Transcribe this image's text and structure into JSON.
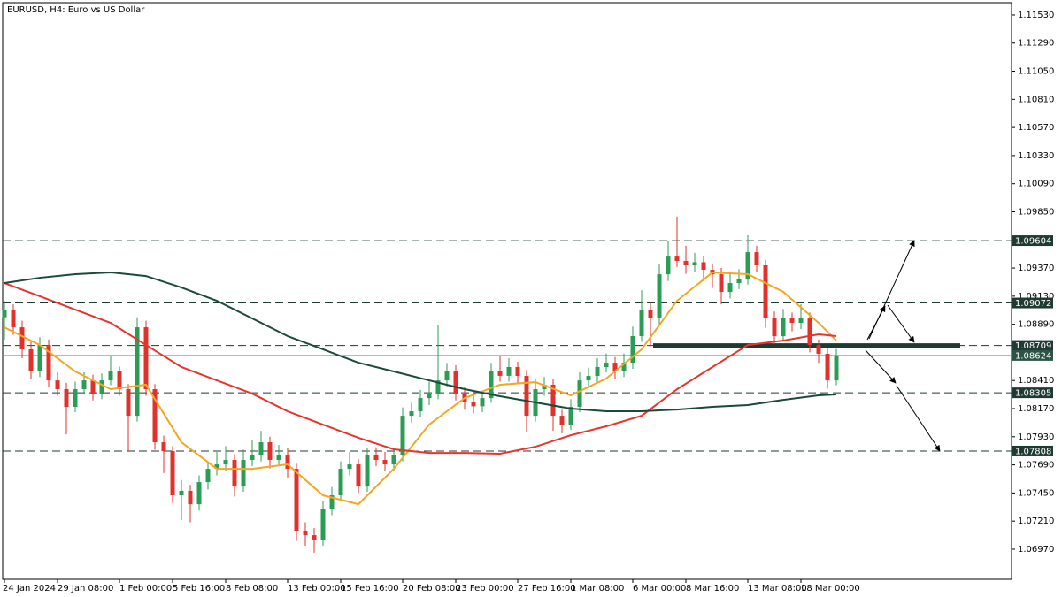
{
  "chart_data": {
    "type": "candlestick",
    "title": "EURUSD, H4:  Euro vs US Dollar",
    "ylim": [
      1.06713,
      1.11658
    ],
    "yticks": [
      {
        "value": 1.1153,
        "label": "1.11530"
      },
      {
        "value": 1.1129,
        "label": "1.11290"
      },
      {
        "value": 1.1105,
        "label": "1.11050"
      },
      {
        "value": 1.1081,
        "label": "1.10810"
      },
      {
        "value": 1.1057,
        "label": "1.10570"
      },
      {
        "value": 1.1033,
        "label": "1.10330"
      },
      {
        "value": 1.1009,
        "label": "1.10090"
      },
      {
        "value": 1.0985,
        "label": "1.09850"
      },
      {
        "value": 1.0937,
        "label": "1.09370"
      },
      {
        "value": 1.0913,
        "label": "1.09130"
      },
      {
        "value": 1.0889,
        "label": "1.08890"
      },
      {
        "value": 1.0841,
        "label": "1.08410"
      },
      {
        "value": 1.0817,
        "label": "1.08170"
      },
      {
        "value": 1.0793,
        "label": "1.07930"
      },
      {
        "value": 1.0769,
        "label": "1.07690"
      },
      {
        "value": 1.0745,
        "label": "1.07450"
      },
      {
        "value": 1.0721,
        "label": "1.07210"
      },
      {
        "value": 1.0697,
        "label": "1.06970"
      }
    ],
    "categories": [
      "24 Jan 2024",
      null,
      null,
      null,
      null,
      null,
      "29 Jan 08:00",
      null,
      null,
      null,
      null,
      null,
      null,
      "1 Feb 00:00",
      null,
      null,
      null,
      null,
      null,
      "5 Feb 16:00",
      null,
      null,
      null,
      null,
      null,
      "8 Feb 08:00",
      null,
      null,
      null,
      null,
      null,
      null,
      "13 Feb 00:00",
      null,
      null,
      null,
      null,
      null,
      "15 Feb 16:00",
      null,
      null,
      null,
      null,
      null,
      null,
      "20 Feb 08:00",
      null,
      null,
      null,
      null,
      null,
      "23 Feb 00:00",
      null,
      null,
      null,
      null,
      null,
      null,
      "27 Feb 16:00",
      null,
      null,
      null,
      null,
      null,
      "1 Mar 08:00",
      null,
      null,
      null,
      null,
      null,
      null,
      "6 Mar 00:00",
      null,
      null,
      null,
      null,
      null,
      "8 Mar 16:00",
      null,
      null,
      null,
      null,
      null,
      null,
      "13 Mar 08:00",
      null,
      null,
      null,
      null,
      null,
      "18 Mar 00:00",
      null,
      null,
      null,
      null
    ],
    "up_color": "#2a9d55",
    "down_color": "#e2302b",
    "candles": [
      [
        1.0895,
        1.0909,
        1.0876,
        1.09015
      ],
      [
        1.09015,
        1.0906,
        1.088,
        1.08864
      ],
      [
        1.08864,
        1.0892,
        1.086,
        1.08676
      ],
      [
        1.08676,
        1.0874,
        1.0842,
        1.08487
      ],
      [
        1.08487,
        1.0878,
        1.0844,
        1.08713
      ],
      [
        1.08713,
        1.0876,
        1.0835,
        1.08411
      ],
      [
        1.08411,
        1.0848,
        1.0828,
        1.08336
      ],
      [
        1.08336,
        1.0839,
        1.0795,
        1.08185
      ],
      [
        1.08185,
        1.084,
        1.0814,
        1.08336
      ],
      [
        1.08336,
        1.0848,
        1.0829,
        1.08411
      ],
      [
        1.08411,
        1.0846,
        1.0824,
        1.08298
      ],
      [
        1.08298,
        1.0847,
        1.0825,
        1.08411
      ],
      [
        1.08411,
        1.0862,
        1.0837,
        1.08487
      ],
      [
        1.08487,
        1.0853,
        1.0828,
        1.08336
      ],
      [
        1.08336,
        1.0838,
        1.0781,
        1.08109
      ],
      [
        1.08109,
        1.0895,
        1.0806,
        1.08864
      ],
      [
        1.08864,
        1.0892,
        1.0828,
        1.08336
      ],
      [
        1.08336,
        1.0838,
        1.0782,
        1.07883
      ],
      [
        1.07883,
        1.0794,
        1.0762,
        1.07807
      ],
      [
        1.07807,
        1.0785,
        1.0736,
        1.0743
      ],
      [
        1.0743,
        1.0756,
        1.0722,
        1.07468
      ],
      [
        1.07468,
        1.0752,
        1.072,
        1.07354
      ],
      [
        1.07354,
        1.076,
        1.073,
        1.07543
      ],
      [
        1.07543,
        1.0772,
        1.0748,
        1.07656
      ],
      [
        1.07656,
        1.078,
        1.076,
        1.07694
      ],
      [
        1.07694,
        1.0785,
        1.0764,
        1.07732
      ],
      [
        1.07732,
        1.0778,
        1.0742,
        1.07505
      ],
      [
        1.07505,
        1.0782,
        1.0746,
        1.07732
      ],
      [
        1.07732,
        1.079,
        1.0768,
        1.0777
      ],
      [
        1.0777,
        1.0798,
        1.0772,
        1.07883
      ],
      [
        1.07883,
        1.0793,
        1.0766,
        1.07732
      ],
      [
        1.07732,
        1.0786,
        1.0768,
        1.0777
      ],
      [
        1.0777,
        1.0783,
        1.0758,
        1.07656
      ],
      [
        1.07656,
        1.077,
        1.0704,
        1.07128
      ],
      [
        1.07128,
        1.072,
        1.07,
        1.0709
      ],
      [
        1.0709,
        1.0715,
        1.0694,
        1.07052
      ],
      [
        1.07052,
        1.0738,
        1.07,
        1.07317
      ],
      [
        1.07317,
        1.075,
        1.0726,
        1.0743
      ],
      [
        1.0743,
        1.0772,
        1.0738,
        1.07656
      ],
      [
        1.07656,
        1.078,
        1.076,
        1.07694
      ],
      [
        1.07694,
        1.0774,
        1.0745,
        1.07505
      ],
      [
        1.07505,
        1.0783,
        1.0746,
        1.0777
      ],
      [
        1.0777,
        1.0784,
        1.0768,
        1.07732
      ],
      [
        1.07732,
        1.078,
        1.0764,
        1.07694
      ],
      [
        1.07694,
        1.0783,
        1.0764,
        1.0777
      ],
      [
        1.0777,
        1.0818,
        1.0772,
        1.08109
      ],
      [
        1.08109,
        1.0822,
        1.0805,
        1.08147
      ],
      [
        1.08147,
        1.0833,
        1.081,
        1.0826
      ],
      [
        1.0826,
        1.084,
        1.082,
        1.08298
      ],
      [
        1.08298,
        1.0888,
        1.0825,
        1.08411
      ],
      [
        1.08411,
        1.0856,
        1.0836,
        1.08487
      ],
      [
        1.08487,
        1.0854,
        1.0824,
        1.08298
      ],
      [
        1.08298,
        1.0835,
        1.0816,
        1.08223
      ],
      [
        1.08223,
        1.0828,
        1.0813,
        1.0819
      ],
      [
        1.0819,
        1.0832,
        1.0814,
        1.0826
      ],
      [
        1.0826,
        1.0856,
        1.0822,
        1.08487
      ],
      [
        1.08487,
        1.0862,
        1.084,
        1.0845
      ],
      [
        1.0845,
        1.086,
        1.084,
        1.08525
      ],
      [
        1.08525,
        1.0857,
        1.0838,
        1.08449
      ],
      [
        1.08449,
        1.085,
        1.0797,
        1.08109
      ],
      [
        1.08109,
        1.0842,
        1.0806,
        1.08336
      ],
      [
        1.08336,
        1.0844,
        1.0828,
        1.08374
      ],
      [
        1.08374,
        1.0842,
        1.0798,
        1.08109
      ],
      [
        1.08109,
        1.0816,
        1.0796,
        1.08034
      ],
      [
        1.08034,
        1.0825,
        1.0799,
        1.08185
      ],
      [
        1.08185,
        1.0848,
        1.0814,
        1.08411
      ],
      [
        1.08411,
        1.0852,
        1.0836,
        1.08449
      ],
      [
        1.08449,
        1.086,
        1.084,
        1.08525
      ],
      [
        1.08525,
        1.0864,
        1.0848,
        1.08562
      ],
      [
        1.08562,
        1.0861,
        1.0842,
        1.08487
      ],
      [
        1.08487,
        1.0864,
        1.0844,
        1.08562
      ],
      [
        1.08562,
        1.0887,
        1.0851,
        1.08789
      ],
      [
        1.08789,
        1.0918,
        1.0874,
        1.09015
      ],
      [
        1.09015,
        1.0908,
        1.087,
        1.0894
      ],
      [
        1.0894,
        1.094,
        1.0888,
        1.09317
      ],
      [
        1.09317,
        1.096,
        1.0926,
        1.09468
      ],
      [
        1.09468,
        1.0981,
        1.0938,
        1.09431
      ],
      [
        1.09431,
        1.0956,
        1.0932,
        1.09393
      ],
      [
        1.09393,
        1.095,
        1.0934,
        1.0942
      ],
      [
        1.0942,
        1.0947,
        1.0926,
        1.09355
      ],
      [
        1.09355,
        1.0941,
        1.092,
        1.09317
      ],
      [
        1.09317,
        1.0937,
        1.0906,
        1.09166
      ],
      [
        1.09166,
        1.0932,
        1.0911,
        1.09242
      ],
      [
        1.09242,
        1.0936,
        1.0919,
        1.0928
      ],
      [
        1.0928,
        1.0965,
        1.0923,
        1.09506
      ],
      [
        1.09506,
        1.0956,
        1.0934,
        1.09393
      ],
      [
        1.09393,
        1.0944,
        1.0886,
        1.0894
      ],
      [
        1.0894,
        1.09,
        1.0872,
        1.08789
      ],
      [
        1.08789,
        1.0902,
        1.0874,
        1.0894
      ],
      [
        1.0894,
        1.0899,
        1.0883,
        1.08902
      ],
      [
        1.08902,
        1.0906,
        1.0885,
        1.0894
      ],
      [
        1.0894,
        1.0899,
        1.0865,
        1.08713
      ],
      [
        1.08713,
        1.0876,
        1.0856,
        1.08638
      ],
      [
        1.08638,
        1.0869,
        1.0834,
        1.08411
      ],
      [
        1.08411,
        1.0868,
        1.0837,
        1.08624
      ]
    ],
    "series": [
      {
        "color": "#f5a623",
        "x": [
          0,
          4,
          8,
          12,
          16,
          20,
          24,
          28,
          32,
          36,
          40,
          44,
          48,
          52,
          56,
          60,
          64,
          68,
          72,
          76,
          80,
          84,
          88,
          92,
          94
        ],
        "values": [
          1.08864,
          1.08713,
          1.08487,
          1.08336,
          1.08374,
          1.07883,
          1.07656,
          1.07656,
          1.07694,
          1.0743,
          1.07354,
          1.07656,
          1.08034,
          1.0826,
          1.08374,
          1.08396,
          1.08283,
          1.08427,
          1.08676,
          1.09091,
          1.09333,
          1.09318,
          1.09167,
          1.08902,
          1.08751
        ]
      },
      {
        "color": "#e8352c",
        "x": [
          0,
          4,
          8,
          12,
          16,
          20,
          24,
          28,
          32,
          36,
          40,
          44,
          48,
          52,
          56,
          60,
          64,
          68,
          72,
          76,
          80,
          84,
          88,
          92,
          94
        ],
        "values": [
          1.09242,
          1.09129,
          1.09015,
          1.08902,
          1.08713,
          1.08525,
          1.08411,
          1.08298,
          1.08147,
          1.08034,
          1.07921,
          1.07823,
          1.07792,
          1.07792,
          1.07785,
          1.07845,
          1.07943,
          1.08019,
          1.08109,
          1.08336,
          1.08525,
          1.08713,
          1.08751,
          1.08804,
          1.08789
        ]
      },
      {
        "color": "#1b4a3b",
        "x": [
          0,
          4,
          8,
          12,
          16,
          20,
          24,
          28,
          32,
          36,
          40,
          44,
          48,
          52,
          56,
          60,
          64,
          68,
          72,
          76,
          80,
          84,
          88,
          92,
          94
        ],
        "values": [
          1.09242,
          1.09287,
          1.09318,
          1.09333,
          1.09302,
          1.09204,
          1.09091,
          1.0894,
          1.08789,
          1.08676,
          1.08562,
          1.08487,
          1.08411,
          1.08336,
          1.08276,
          1.08223,
          1.0817,
          1.08147,
          1.08147,
          1.08162,
          1.08185,
          1.082,
          1.08245,
          1.08283,
          1.08291
        ]
      }
    ],
    "levels": [
      1.09604,
      1.09072,
      1.08709,
      1.08305,
      1.07808
    ],
    "level_color": "#1f3a33",
    "last_price": 1.08624
  }
}
